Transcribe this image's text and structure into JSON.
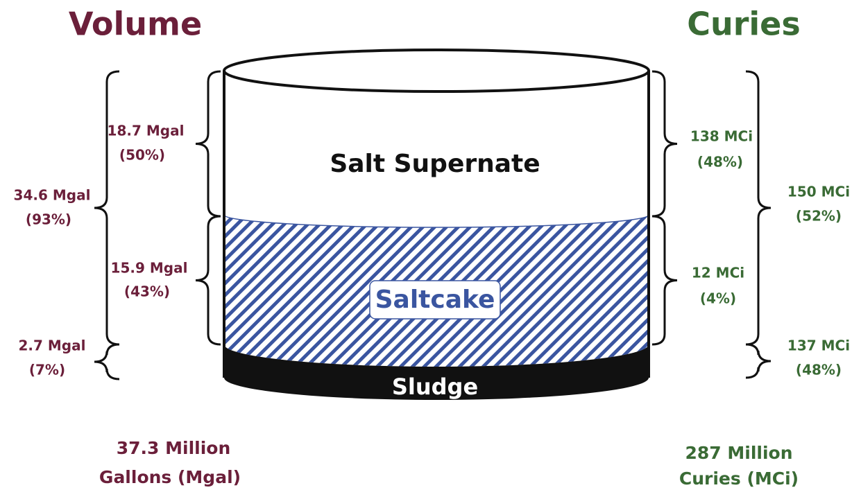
{
  "volume": {
    "title": "Volume",
    "items": [
      {
        "amount": "18.7 Mgal",
        "share": "(50%)"
      },
      {
        "amount": "34.6 Mgal",
        "share": "(93%)"
      },
      {
        "amount": "15.9 Mgal",
        "share": "(43%)"
      },
      {
        "amount": "2.7 Mgal",
        "share": "(7%)"
      }
    ],
    "total": [
      "37.3 Million",
      "Gallons (Mgal)"
    ]
  },
  "curies": {
    "title": "Curies",
    "items": [
      {
        "amount": "138 MCi",
        "share": "(48%)"
      },
      {
        "amount": "150 MCi",
        "share": "(52%)"
      },
      {
        "amount": "12 MCi",
        "share": "(4%)"
      },
      {
        "amount": "137 MCi",
        "share": "(48%)"
      }
    ],
    "total": [
      "287 Million",
      "Curies (MCi)"
    ]
  },
  "tank": {
    "layers": [
      "Salt Supernate",
      "Saltcake",
      "Sludge"
    ]
  }
}
